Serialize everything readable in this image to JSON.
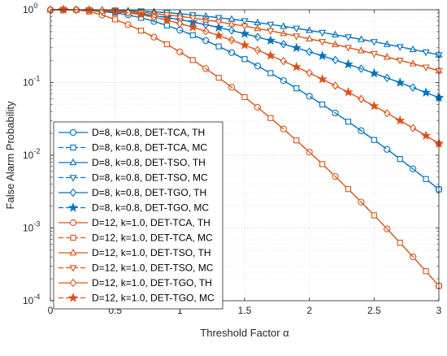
{
  "chart_data": {
    "type": "line",
    "xlabel": "Threshold Factor α",
    "ylabel": "False Alarm Probability",
    "xlim": [
      0,
      3
    ],
    "ylim": [
      0.0001,
      1
    ],
    "y_scale": "log",
    "grid": true,
    "legend_placement": "bottom-left",
    "x_ticks": [
      {
        "value": 0,
        "label": "0"
      },
      {
        "value": 0.5,
        "label": "0.5"
      },
      {
        "value": 1,
        "label": "1"
      },
      {
        "value": 1.5,
        "label": "1.5"
      },
      {
        "value": 2,
        "label": "2"
      },
      {
        "value": 2.5,
        "label": "2.5"
      },
      {
        "value": 3,
        "label": "3"
      }
    ],
    "y_ticks": [
      {
        "value": 1,
        "base": "10",
        "exp": "0"
      },
      {
        "value": 0.1,
        "base": "10",
        "exp": "-1"
      },
      {
        "value": 0.01,
        "base": "10",
        "exp": "-2"
      },
      {
        "value": 0.001,
        "base": "10",
        "exp": "-3"
      },
      {
        "value": 0.0001,
        "base": "10",
        "exp": "-4"
      }
    ],
    "x": [
      0,
      0.1,
      0.2,
      0.3,
      0.4,
      0.5,
      0.6,
      0.7,
      0.8,
      0.9,
      1.0,
      1.1,
      1.2,
      1.3,
      1.4,
      1.5,
      1.6,
      1.7,
      1.8,
      1.9,
      2.0,
      2.1,
      2.2,
      2.3,
      2.4,
      2.5,
      2.6,
      2.7,
      2.8,
      2.9,
      3.0
    ],
    "series": [
      {
        "name": "D=8, k=0.8, DET-TCA, TH",
        "color": "#0072BD",
        "marker": "circle",
        "dash": "solid",
        "marker_every": 2,
        "curve": {
          "x0": 0.45,
          "y0": 0.92,
          "y3": 0.0034
        }
      },
      {
        "name": "D=8, k=0.8, DET-TCA, MC",
        "color": "#0072BD",
        "marker": "square",
        "dash": "dashed",
        "marker_every": 2,
        "curve": {
          "x0": 0.45,
          "y0": 0.92,
          "y3": 0.0034
        }
      },
      {
        "name": "D=8, k=0.8, DET-TSO, TH",
        "color": "#0072BD",
        "marker": "triangle-up",
        "dash": "solid",
        "marker_every": 2,
        "curve": {
          "x0": 0.6,
          "y0": 0.97,
          "y3": 0.24
        }
      },
      {
        "name": "D=8, k=0.8, DET-TSO, MC",
        "color": "#0072BD",
        "marker": "triangle-down",
        "dash": "dashed",
        "marker_every": 2,
        "curve": {
          "x0": 0.6,
          "y0": 0.97,
          "y3": 0.24
        }
      },
      {
        "name": "D=8, k=0.8, DET-TGO, TH",
        "color": "#0072BD",
        "marker": "diamond",
        "dash": "solid",
        "marker_every": 2,
        "curve": {
          "x0": 0.5,
          "y0": 0.93,
          "y3": 0.062
        }
      },
      {
        "name": "D=8, k=0.8, DET-TGO, MC",
        "color": "#0072BD",
        "marker": "star",
        "dash": "dashed",
        "marker_every": 2,
        "curve": {
          "x0": 0.5,
          "y0": 0.93,
          "y3": 0.062
        }
      },
      {
        "name": "D=12, k=1.0, DET-TCA, TH",
        "color": "#D95319",
        "marker": "circle",
        "dash": "solid",
        "marker_every": 2,
        "curve": {
          "x0": 0.2,
          "y0": 1.0,
          "y3": 0.00016
        }
      },
      {
        "name": "D=12, k=1.0, DET-TCA, MC",
        "color": "#D95319",
        "marker": "square",
        "dash": "dashed",
        "marker_every": 2,
        "curve": {
          "x0": 0.2,
          "y0": 1.0,
          "y3": 0.00016
        }
      },
      {
        "name": "D=12, k=1.0, DET-TSO, TH",
        "color": "#D95319",
        "marker": "triangle-up",
        "dash": "solid",
        "marker_every": 2,
        "curve": {
          "x0": 0.5,
          "y0": 0.96,
          "y3": 0.145
        }
      },
      {
        "name": "D=12, k=1.0, DET-TSO, MC",
        "color": "#D95319",
        "marker": "triangle-down",
        "dash": "dashed",
        "marker_every": 2,
        "curve": {
          "x0": 0.5,
          "y0": 0.96,
          "y3": 0.145
        }
      },
      {
        "name": "D=12, k=1.0, DET-TGO, TH",
        "color": "#D95319",
        "marker": "diamond",
        "dash": "solid",
        "marker_every": 2,
        "curve": {
          "x0": 0.5,
          "y0": 0.94,
          "y3": 0.0145
        }
      },
      {
        "name": "D=12, k=1.0, DET-TGO, MC",
        "color": "#D95319",
        "marker": "star",
        "dash": "dashed",
        "marker_every": 2,
        "curve": {
          "x0": 0.5,
          "y0": 0.94,
          "y3": 0.0145
        }
      }
    ]
  }
}
